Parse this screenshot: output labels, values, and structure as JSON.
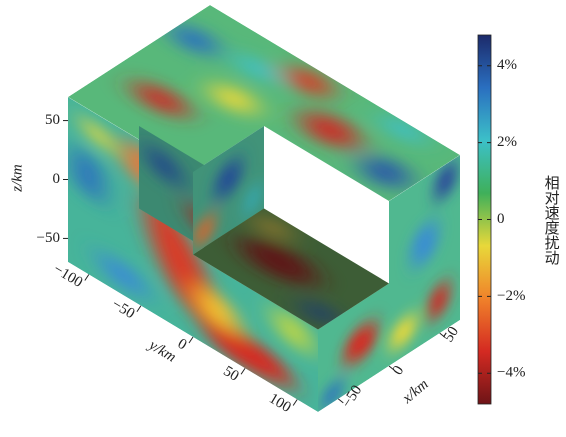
{
  "chart_data": {
    "type": "volume",
    "zlabel": "z/km",
    "ylabel": "y/km",
    "xlabel": "x/km",
    "zlim": [
      -70,
      70
    ],
    "zticks": [
      50,
      0,
      {
        "value": -50,
        "label": "−50"
      }
    ],
    "ylim": [
      -120,
      120
    ],
    "yticks": [
      {
        "value": -100,
        "label": "−100"
      },
      {
        "value": -50,
        "label": "−50"
      },
      0,
      50,
      100
    ],
    "xlim": [
      -70,
      70
    ],
    "xticks": [
      {
        "value": -50,
        "label": "−50"
      },
      0,
      50
    ],
    "colorbar": {
      "label": "相对速度扰动",
      "clim": [
        -4.8,
        4.8
      ],
      "colors": [
        "#6e1417",
        "#d42a22",
        "#f0822a",
        "#e8d83a",
        "#3fb05a",
        "#3cc0c8",
        "#2a6fc0",
        "#1c2a6a"
      ],
      "ticks": [
        {
          "value": 4,
          "label": "4%"
        },
        {
          "value": 2,
          "label": "2%"
        },
        0,
        {
          "value": -2,
          "label": "−2%"
        },
        {
          "value": -4,
          "label": "−4%"
        }
      ]
    }
  }
}
